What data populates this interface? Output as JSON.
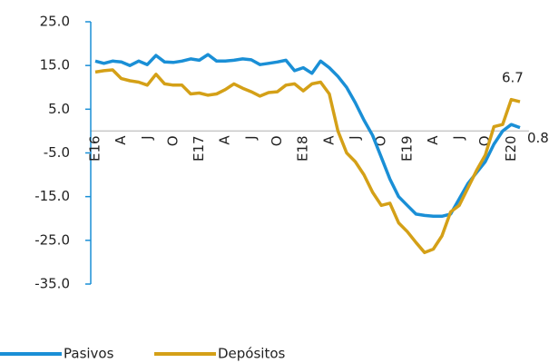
{
  "chart_data": {
    "type": "line",
    "categories": [
      "E16",
      null,
      null,
      "A",
      null,
      null,
      "J",
      null,
      null,
      "O",
      null,
      null,
      "E17",
      null,
      null,
      "A",
      null,
      null,
      "J",
      null,
      null,
      "O",
      null,
      null,
      "E18",
      null,
      null,
      "A",
      null,
      null,
      "J",
      null,
      null,
      "O",
      null,
      null,
      "E19",
      null,
      null,
      "A",
      null,
      null,
      "J",
      null,
      null,
      "O",
      null,
      null,
      "E20",
      null
    ],
    "series": [
      {
        "name": "Pasivos",
        "color": "#1a8fd6",
        "values": [
          16,
          15.5,
          16,
          15.8,
          15,
          16,
          15.2,
          17.3,
          15.8,
          15.7,
          16,
          16.5,
          16.2,
          17.5,
          16,
          16,
          16.2,
          16.5,
          16.3,
          15.2,
          15.5,
          15.8,
          16.2,
          13.8,
          14.5,
          13.2,
          16,
          14.5,
          12.5,
          10,
          6.5,
          2.5,
          -1,
          -6,
          -11,
          -15,
          -17,
          -19,
          -19.3,
          -19.5,
          -19.5,
          -19,
          -15.5,
          -12,
          -9.5,
          -7,
          -3,
          0,
          1.5,
          0.8
        ]
      },
      {
        "name": "Depósitos",
        "color": "#d4a017",
        "values": [
          13.5,
          13.8,
          14,
          12,
          11.5,
          11.2,
          10.5,
          13,
          10.8,
          10.5,
          10.5,
          8.5,
          8.7,
          8.2,
          8.5,
          9.5,
          10.8,
          9.8,
          9,
          8,
          8.8,
          9,
          10.5,
          10.8,
          9.2,
          10.8,
          11.2,
          8.5,
          0,
          -5,
          -7,
          -10,
          -14,
          -17,
          -16.5,
          -21,
          -23,
          -25.5,
          -27.8,
          -27,
          -24,
          -18.5,
          -17,
          -13,
          -9,
          -5.5,
          1,
          1.5,
          7.2,
          6.7
        ]
      }
    ],
    "ylim": [
      -35,
      25
    ],
    "yticks": [
      {
        "value": 25,
        "label": "25.0"
      },
      {
        "value": 15,
        "label": "15.0"
      },
      {
        "value": 5,
        "label": "5.0"
      },
      {
        "value": -5,
        "label": "-5.0"
      },
      {
        "value": -15,
        "label": "-15.0"
      },
      {
        "value": -25,
        "label": "-25.0"
      },
      {
        "value": -35,
        "label": "-35.0"
      }
    ],
    "legend": "bottom-left"
  }
}
